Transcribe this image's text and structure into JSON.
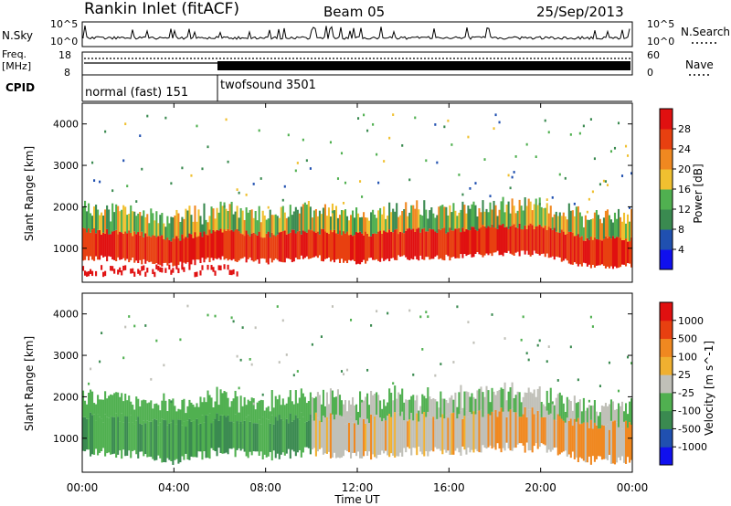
{
  "header": {
    "title": "Rankin Inlet (fitACF)",
    "beam": "Beam 05",
    "date": "25/Sep/2013"
  },
  "noise_panel": {
    "left_label": "N.Sky",
    "right_label": "N.Search",
    "left_ticks": [
      "10^5",
      "10^0"
    ],
    "right_ticks": [
      "10^5",
      "10^0"
    ]
  },
  "freq_panel": {
    "left_label_line1": "Freq.",
    "left_label_line2": "[MHz]",
    "left_ticks": [
      "18",
      "8"
    ],
    "right_ticks": [
      "60",
      "0"
    ],
    "right_label": "Nave"
  },
  "cpid": {
    "label": "CPID",
    "segments": [
      {
        "name": "normal (fast) 151",
        "start_hour": 0,
        "end_hour": 6
      },
      {
        "name": "twofsound 3501",
        "start_hour": 6,
        "end_hour": 24
      }
    ]
  },
  "colors": {
    "power": [
      "#1010ee",
      "#2050b0",
      "#3a8a50",
      "#50b050",
      "#f0c030",
      "#f08820",
      "#e84010",
      "#e01010"
    ],
    "velocity": [
      "#e01010",
      "#e84010",
      "#f08820",
      "#f0b030",
      "#c0c0b8",
      "#50b050",
      "#3a8a50",
      "#2050b0",
      "#1010ee"
    ]
  },
  "chart_data": [
    {
      "type": "heatmap",
      "name": "power",
      "ylabel": "Slant Range [km]",
      "xlabel": "",
      "xlim": [
        0,
        24
      ],
      "ylim": [
        180,
        4500
      ],
      "yticks": [
        1000,
        2000,
        3000,
        4000
      ],
      "colorbar": {
        "label": "Power [dB]",
        "ticks": [
          4,
          8,
          12,
          16,
          20,
          24,
          28
        ],
        "range": [
          0,
          32
        ]
      },
      "features": [
        {
          "description": "intense band",
          "start_hour": 0,
          "end_hour": 24,
          "range_center_km": [
            1100,
            1050,
            900,
            1100,
            1000,
            1100,
            1000,
            1100,
            1100,
            1200,
            1200,
            900,
            900
          ],
          "power_db": 28
        }
      ]
    },
    {
      "type": "heatmap",
      "name": "velocity",
      "ylabel": "Slant Range [km]",
      "xlabel": "Time UT",
      "xlim": [
        0,
        24
      ],
      "ylim": [
        180,
        4500
      ],
      "yticks": [
        1000,
        2000,
        3000,
        4000
      ],
      "xticks": [
        "00:00",
        "04:00",
        "08:00",
        "12:00",
        "16:00",
        "20:00",
        "00:00"
      ],
      "colorbar": {
        "label": "Velocity [m s^-1]",
        "ticks": [
          "1000",
          "500",
          "100",
          "25",
          "-25",
          "-100",
          "-500",
          "-1000"
        ]
      }
    }
  ]
}
